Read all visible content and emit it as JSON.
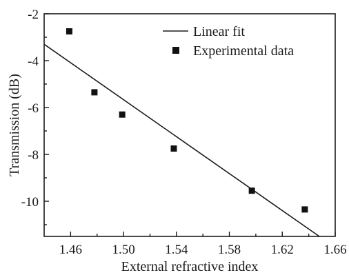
{
  "chart_data": {
    "type": "scatter",
    "xlabel": "External refractive index",
    "ylabel": "Transmission (dB)",
    "xlim": [
      1.44,
      1.66
    ],
    "ylim": [
      -11.5,
      -2.0
    ],
    "x_ticks": [
      1.46,
      1.5,
      1.54,
      1.58,
      1.62,
      1.66
    ],
    "x_tick_labels": [
      "1.46",
      "1.50",
      "1.54",
      "1.58",
      "1.62",
      "1.66"
    ],
    "y_ticks": [
      -2,
      -4,
      -6,
      -8,
      -10
    ],
    "y_tick_labels": [
      "-2",
      "-4",
      "-6",
      "-8",
      "-10"
    ],
    "grid": false,
    "legend_position": "top-right",
    "series": [
      {
        "name": "Linear fit",
        "kind": "line",
        "color": "#1a1a1a",
        "x": [
          1.44,
          1.648
        ],
        "y": [
          -3.3,
          -11.5
        ]
      },
      {
        "name": "Experimental data",
        "kind": "scatter",
        "marker": "square",
        "color": "#111111",
        "x": [
          1.459,
          1.478,
          1.499,
          1.538,
          1.597,
          1.637
        ],
        "y": [
          -2.75,
          -5.35,
          -6.3,
          -7.75,
          -9.55,
          -10.35
        ]
      }
    ]
  }
}
